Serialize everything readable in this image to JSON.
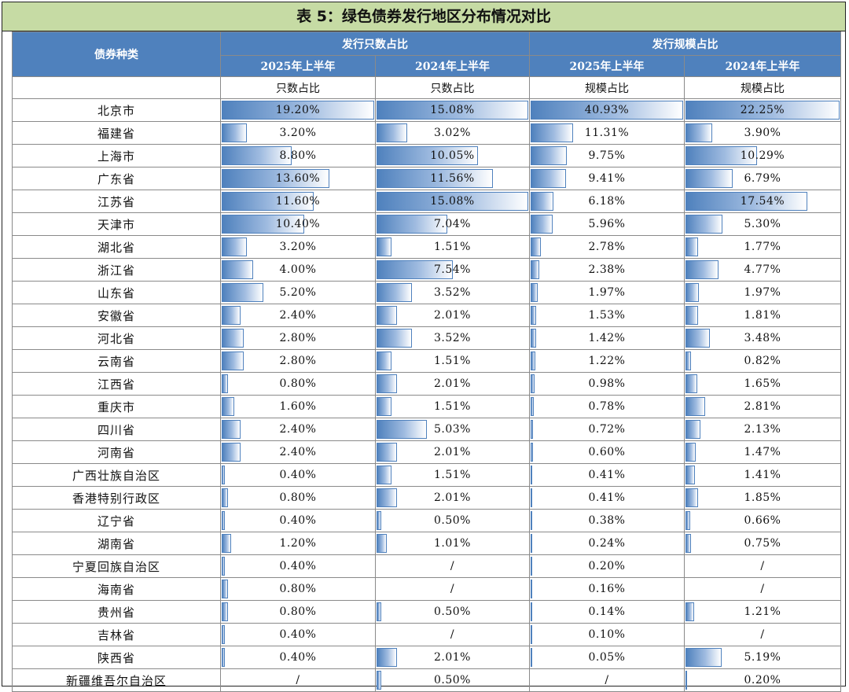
{
  "title": "表 5：绿色债券发行地区分布情况对比",
  "header": {
    "category": "债券种类",
    "group1": "发行只数占比",
    "group2": "发行规模占比",
    "periods": [
      "2025年上半年",
      "2024年上半年",
      "2025年上半年",
      "2024年上半年"
    ],
    "subheads": [
      "只数占比",
      "只数占比",
      "规模占比",
      "规模占比"
    ]
  },
  "colors": {
    "header_bg": "#4f81bd",
    "title_bg": "#c6dba4",
    "bar": "#4f81bd"
  },
  "max_values": [
    19.2,
    15.08,
    40.93,
    22.25
  ],
  "rows": [
    {
      "name": "北京市",
      "cells": [
        "19.20%",
        "15.08%",
        "40.93%",
        "22.25%"
      ]
    },
    {
      "name": "福建省",
      "cells": [
        "3.20%",
        "3.02%",
        "11.31%",
        "3.90%"
      ]
    },
    {
      "name": "上海市",
      "cells": [
        "8.80%",
        "10.05%",
        "9.75%",
        "10.29%"
      ]
    },
    {
      "name": "广东省",
      "cells": [
        "13.60%",
        "11.56%",
        "9.41%",
        "6.79%"
      ]
    },
    {
      "name": "江苏省",
      "cells": [
        "11.60%",
        "15.08%",
        "6.18%",
        "17.54%"
      ]
    },
    {
      "name": "天津市",
      "cells": [
        "10.40%",
        "7.04%",
        "5.96%",
        "5.30%"
      ]
    },
    {
      "name": "湖北省",
      "cells": [
        "3.20%",
        "1.51%",
        "2.78%",
        "1.77%"
      ]
    },
    {
      "name": "浙江省",
      "cells": [
        "4.00%",
        "7.54%",
        "2.38%",
        "4.77%"
      ]
    },
    {
      "name": "山东省",
      "cells": [
        "5.20%",
        "3.52%",
        "1.97%",
        "1.97%"
      ]
    },
    {
      "name": "安徽省",
      "cells": [
        "2.40%",
        "2.01%",
        "1.53%",
        "1.81%"
      ]
    },
    {
      "name": "河北省",
      "cells": [
        "2.80%",
        "3.52%",
        "1.42%",
        "3.48%"
      ]
    },
    {
      "name": "云南省",
      "cells": [
        "2.80%",
        "1.51%",
        "1.22%",
        "0.82%"
      ]
    },
    {
      "name": "江西省",
      "cells": [
        "0.80%",
        "2.01%",
        "0.98%",
        "1.65%"
      ]
    },
    {
      "name": "重庆市",
      "cells": [
        "1.60%",
        "1.51%",
        "0.78%",
        "2.81%"
      ]
    },
    {
      "name": "四川省",
      "cells": [
        "2.40%",
        "5.03%",
        "0.72%",
        "2.13%"
      ]
    },
    {
      "name": "河南省",
      "cells": [
        "2.40%",
        "2.01%",
        "0.60%",
        "1.47%"
      ]
    },
    {
      "name": "广西壮族自治区",
      "cells": [
        "0.40%",
        "1.51%",
        "0.41%",
        "1.41%"
      ]
    },
    {
      "name": "香港特别行政区",
      "cells": [
        "0.80%",
        "2.01%",
        "0.41%",
        "1.85%"
      ]
    },
    {
      "name": "辽宁省",
      "cells": [
        "0.40%",
        "0.50%",
        "0.38%",
        "0.66%"
      ]
    },
    {
      "name": "湖南省",
      "cells": [
        "1.20%",
        "1.01%",
        "0.24%",
        "0.75%"
      ]
    },
    {
      "name": "宁夏回族自治区",
      "cells": [
        "0.40%",
        "/",
        "0.20%",
        "/"
      ]
    },
    {
      "name": "海南省",
      "cells": [
        "0.80%",
        "/",
        "0.16%",
        "/"
      ]
    },
    {
      "name": "贵州省",
      "cells": [
        "0.80%",
        "0.50%",
        "0.14%",
        "1.21%"
      ]
    },
    {
      "name": "吉林省",
      "cells": [
        "0.40%",
        "/",
        "0.10%",
        "/"
      ]
    },
    {
      "name": "陕西省",
      "cells": [
        "0.40%",
        "2.01%",
        "0.05%",
        "5.19%"
      ]
    },
    {
      "name": "新疆维吾尔自治区",
      "cells": [
        "/",
        "0.50%",
        "/",
        "0.20%"
      ]
    }
  ]
}
